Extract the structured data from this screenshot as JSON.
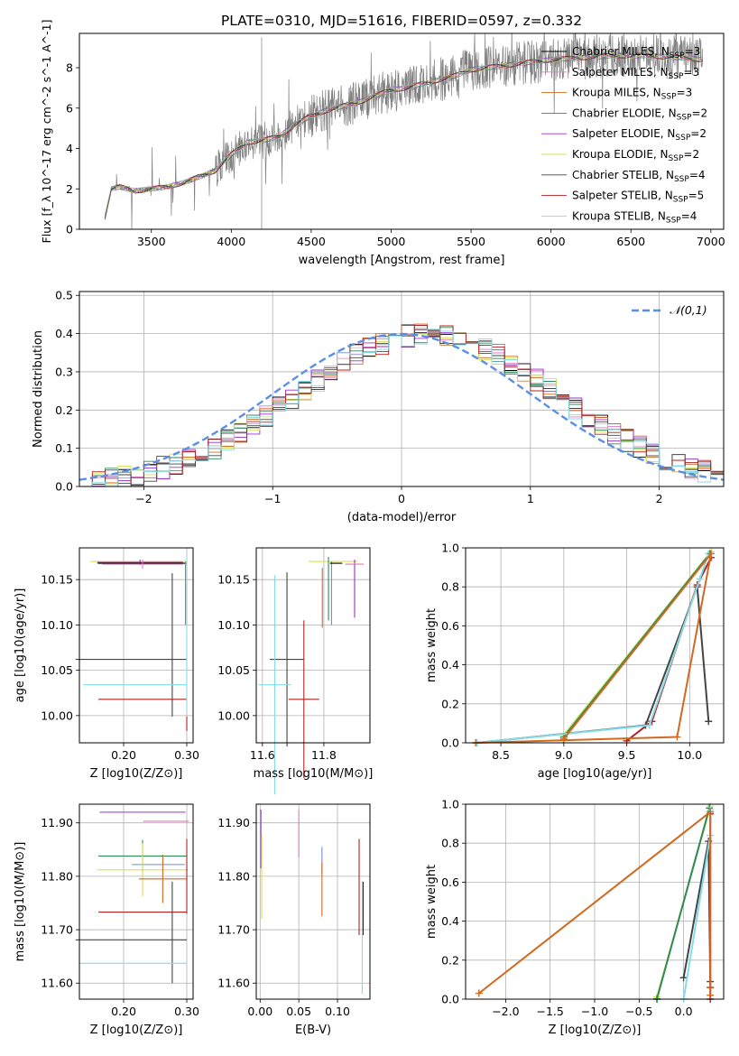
{
  "title": "PLATE=0310, MJD=51616, FIBERID=0597, z=0.332",
  "models": [
    {
      "label": "Chabrier MILES",
      "n_ssp": "3",
      "color": "#000000"
    },
    {
      "label": "Salpeter MILES",
      "n_ssp": "3",
      "color": "#e377c2"
    },
    {
      "label": "Kroupa MILES",
      "n_ssp": "3",
      "color": "#d2691e"
    },
    {
      "label": "Chabrier ELODIE",
      "n_ssp": "2",
      "color": "#2e8b57"
    },
    {
      "label": "Salpeter ELODIE",
      "n_ssp": "2",
      "color": "#9932cc"
    },
    {
      "label": "Kroupa ELODIE",
      "n_ssp": "2",
      "color": "#d4e157"
    },
    {
      "label": "Chabrier STELIB",
      "n_ssp": "4",
      "color": "#444444"
    },
    {
      "label": "Salpeter STELIB",
      "n_ssp": "5",
      "color": "#b22222"
    },
    {
      "label": "Kroupa STELIB",
      "n_ssp": "4",
      "color": "#80deea"
    }
  ],
  "chart_data": [
    {
      "id": "spectrum",
      "type": "line",
      "xlabel": "wavelength [Angstrom, rest frame]",
      "ylabel": "Flux [f_λ 10^-17 erg cm^-2 s^-1 A^-1]",
      "xlim": [
        3050,
        7080
      ],
      "ylim": [
        0,
        9.7
      ],
      "xticks": [
        3500,
        4000,
        4500,
        5000,
        5500,
        6000,
        6500,
        7000
      ],
      "yticks": [
        0,
        2,
        4,
        6,
        8
      ],
      "data_color": "#808080",
      "data_range": [
        3210,
        6950
      ],
      "continuum": {
        "x": [
          3210,
          3250,
          3300,
          3400,
          3500,
          3600,
          3700,
          3800,
          3900,
          4000,
          4100,
          4200,
          4300,
          4400,
          4500,
          4600,
          4700,
          4800,
          4900,
          5000,
          5100,
          5200,
          5300,
          5400,
          5500,
          5600,
          5700,
          5800,
          5900,
          6000,
          6200,
          6400,
          6600,
          6800,
          6950
        ],
        "y": [
          0.6,
          2.0,
          2.1,
          1.9,
          2.0,
          2.1,
          2.3,
          2.6,
          2.9,
          3.7,
          4.3,
          4.4,
          4.6,
          5.2,
          5.6,
          5.9,
          6.1,
          6.3,
          6.6,
          6.9,
          7.0,
          7.2,
          7.4,
          7.6,
          7.9,
          8.0,
          8.1,
          8.2,
          8.3,
          8.4,
          8.5,
          8.6,
          8.6,
          8.5,
          8.4
        ]
      }
    },
    {
      "id": "residuals",
      "type": "step-histogram",
      "xlabel": "(data-model)/error",
      "ylabel": "Normed distribution",
      "xlim": [
        -2.5,
        2.5
      ],
      "ylim": [
        0,
        0.51
      ],
      "xticks": [
        -2,
        -1,
        0,
        1,
        2
      ],
      "yticks": [
        0.0,
        0.1,
        0.2,
        0.3,
        0.4,
        0.5
      ],
      "bins": [
        -2.5,
        2.5,
        50
      ],
      "reference": {
        "name": "𝒩(0,1)",
        "mu": 0,
        "sigma": 1,
        "color": "#5b8ee6"
      },
      "grid": true,
      "legend": "top-right"
    },
    {
      "id": "age_vs_Z",
      "type": "scatter-errorbar",
      "xlabel": "Z [log10(Z/Z⊙)]",
      "ylabel": "age [log10(age/yr)]",
      "xlim": [
        0.13,
        0.31
      ],
      "ylim": [
        9.97,
        10.185
      ],
      "xticks": [
        0.2,
        0.3
      ],
      "yticks": [
        10.0,
        10.05,
        10.1,
        10.15
      ],
      "grid": true,
      "points": [
        {
          "model": 5,
          "x": 0.223,
          "y": 10.17,
          "xerr": 0.076,
          "yerr": 0
        },
        {
          "model": 4,
          "x": 0.226,
          "y": 10.169,
          "xerr": 0.068,
          "yerr": 0.003
        },
        {
          "model": 0,
          "x": 0.229,
          "y": 10.168,
          "xerr": 0.07,
          "yerr": 0
        },
        {
          "model": 1,
          "x": 0.23,
          "y": 10.167,
          "xerr": 0.064,
          "yerr": 0.005
        },
        {
          "model": 2,
          "x": 0.298,
          "y": 10.135,
          "xerr": 0,
          "yerr": 0.035
        },
        {
          "model": 6,
          "x": 0.277,
          "y": 10.078,
          "xerr": 0,
          "yerr": 0.079
        },
        {
          "model": 6,
          "x": 0.212,
          "y": 10.062,
          "xerr": 0.088,
          "yerr": 0
        },
        {
          "model": 8,
          "x": 0.218,
          "y": 10.034,
          "xerr": 0.082,
          "yerr": 0
        },
        {
          "model": 7,
          "x": 0.23,
          "y": 10.018,
          "xerr": 0.07,
          "yerr": 0
        },
        {
          "model": 7,
          "x": 0.3,
          "y": 9.991,
          "xerr": 0,
          "yerr": 0.008
        },
        {
          "model": 8,
          "x": 0.3,
          "y": 10.09,
          "xerr": 0,
          "yerr": 0.085
        }
      ]
    },
    {
      "id": "age_vs_mass",
      "type": "scatter-errorbar",
      "xlabel": "mass [log10(M/M⊙)]",
      "ylabel": "",
      "xlim": [
        11.58,
        11.95
      ],
      "ylim": [
        9.97,
        10.185
      ],
      "xticks": [
        11.6,
        11.8
      ],
      "yticks": [
        10.0,
        10.05,
        10.1,
        10.15
      ],
      "grid": true,
      "points": [
        {
          "model": 6,
          "x": 11.68,
          "y": 10.062,
          "xerr": 0.056,
          "yerr": 0.096
        },
        {
          "model": 8,
          "x": 11.64,
          "y": 10.034,
          "xerr": 0.053,
          "yerr": 0.121
        },
        {
          "model": 7,
          "x": 11.735,
          "y": 10.018,
          "xerr": 0.05,
          "yerr": 0.087
        },
        {
          "model": 5,
          "x": 11.83,
          "y": 10.17,
          "xerr": 0.08,
          "yerr": 0
        },
        {
          "model": 2,
          "x": 11.795,
          "y": 10.13,
          "xerr": 0,
          "yerr": 0.033
        },
        {
          "model": 3,
          "x": 11.815,
          "y": 10.14,
          "xerr": 0,
          "yerr": 0.035
        },
        {
          "model": 9,
          "x": 11.825,
          "y": 10.135,
          "xerr": 0,
          "yerr": 0.035
        },
        {
          "model": 4,
          "x": 11.9,
          "y": 10.14,
          "xerr": 0,
          "yerr": 0.032
        },
        {
          "model": 1,
          "x": 11.9,
          "y": 10.167,
          "xerr": 0.03,
          "yerr": 0
        },
        {
          "model": 0,
          "x": 11.84,
          "y": 10.168,
          "xerr": 0.02,
          "yerr": 0
        }
      ]
    },
    {
      "id": "massweight_vs_age",
      "type": "line",
      "xlabel": "age [log10(age/yr)]",
      "ylabel": "mass weight",
      "xlim": [
        8.22,
        10.27
      ],
      "ylim": [
        0,
        1.0
      ],
      "xticks": [
        8.5,
        9.0,
        9.5,
        10.0
      ],
      "yticks": [
        0.0,
        0.2,
        0.4,
        0.6,
        0.8,
        1.0
      ],
      "grid": true,
      "series": [
        {
          "model": 5,
          "x": [
            9.0,
            10.17,
            9.0
          ],
          "y": [
            0.04,
            0.98,
            0.04
          ]
        },
        {
          "model": 3,
          "x": [
            9.0,
            10.16,
            9.0
          ],
          "y": [
            0.03,
            0.97,
            0.03
          ]
        },
        {
          "model": 6,
          "x": [
            8.31,
            9.65,
            10.06,
            10.15
          ],
          "y": [
            0.0,
            0.09,
            0.8,
            0.11
          ]
        },
        {
          "model": 7,
          "x": [
            9.5,
            9.7,
            10.06,
            10.17
          ],
          "y": [
            0.01,
            0.11,
            0.81,
            0.95
          ]
        },
        {
          "model": 8,
          "x": [
            8.31,
            9.68,
            10.08,
            10.15
          ],
          "y": [
            0.0,
            0.09,
            0.84,
            0.97
          ]
        },
        {
          "model": 2,
          "x": [
            8.3,
            9.9,
            10.17,
            9.0
          ],
          "y": [
            0.0,
            0.03,
            0.97,
            0.02
          ]
        }
      ]
    },
    {
      "id": "mass_vs_Z",
      "type": "scatter-errorbar",
      "xlabel": "Z [log10(Z/Z⊙)]",
      "ylabel": "mass [log10(M/M⊙)]",
      "xlim": [
        0.13,
        0.31
      ],
      "ylim": [
        11.57,
        11.935
      ],
      "xticks": [
        0.2,
        0.3
      ],
      "yticks": [
        11.6,
        11.7,
        11.8,
        11.9
      ],
      "grid": true,
      "points": [
        {
          "model": 4,
          "x": 0.23,
          "y": 11.92,
          "xerr": 0.068,
          "yerr": 0
        },
        {
          "model": 1,
          "x": 0.267,
          "y": 11.903,
          "xerr": 0.036,
          "yerr": 0
        },
        {
          "model": 3,
          "x": 0.23,
          "y": 11.838,
          "xerr": 0.07,
          "yerr": 0.03
        },
        {
          "model": 9,
          "x": 0.255,
          "y": 11.822,
          "xerr": 0.042,
          "yerr": 0
        },
        {
          "model": 5,
          "x": 0.23,
          "y": 11.812,
          "xerr": 0.072,
          "yerr": 0.05
        },
        {
          "model": 2,
          "x": 0.262,
          "y": 11.795,
          "xerr": 0.038,
          "yerr": 0.045
        },
        {
          "model": 7,
          "x": 0.23,
          "y": 11.733,
          "xerr": 0.07,
          "yerr": 0
        },
        {
          "model": 6,
          "x": 0.212,
          "y": 11.681,
          "xerr": 0.088,
          "yerr": 0
        },
        {
          "model": 6,
          "x": 0.277,
          "y": 11.695,
          "xerr": 0,
          "yerr": 0.095
        },
        {
          "model": 8,
          "x": 0.215,
          "y": 11.637,
          "xerr": 0.085,
          "yerr": 0
        },
        {
          "model": 7,
          "x": 0.3,
          "y": 11.8,
          "xerr": 0,
          "yerr": 0.07
        }
      ]
    },
    {
      "id": "mass_vs_EBV",
      "type": "scatter-errorbar",
      "xlabel": "E(B-V)",
      "ylabel": "",
      "xlim": [
        -0.005,
        0.142
      ],
      "ylim": [
        11.57,
        11.935
      ],
      "xticks": [
        0.0,
        0.05,
        0.1
      ],
      "yticks": [
        11.6,
        11.7,
        11.8,
        11.9
      ],
      "grid": true,
      "points": [
        {
          "model": 4,
          "x": 0.001,
          "y": 11.87,
          "xerr": 0,
          "yerr": 0.055
        },
        {
          "model": 5,
          "x": 0.002,
          "y": 11.8,
          "xerr": 0,
          "yerr": 0.08
        },
        {
          "model": 1,
          "x": 0.05,
          "y": 11.88,
          "xerr": 0,
          "yerr": 0.045
        },
        {
          "model": 9,
          "x": 0.08,
          "y": 11.83,
          "xerr": 0,
          "yerr": 0.025
        },
        {
          "model": 2,
          "x": 0.08,
          "y": 11.775,
          "xerr": 0,
          "yerr": 0.05
        },
        {
          "model": 7,
          "x": 0.128,
          "y": 11.78,
          "xerr": 0,
          "yerr": 0.09
        },
        {
          "model": 0,
          "x": 0.133,
          "y": 11.74,
          "xerr": 0,
          "yerr": 0.05
        },
        {
          "model": 8,
          "x": 0.132,
          "y": 11.64,
          "xerr": 0,
          "yerr": 0.06
        }
      ]
    },
    {
      "id": "massweight_vs_Z",
      "type": "line",
      "xlabel": "Z [log10(Z/Z⊙)]",
      "ylabel": "mass weight",
      "xlim": [
        -2.45,
        0.45
      ],
      "ylim": [
        0,
        1.0
      ],
      "xticks": [
        -2.0,
        -1.5,
        -1.0,
        -0.5,
        0.0
      ],
      "yticks": [
        0.0,
        0.2,
        0.4,
        0.6,
        0.8,
        1.0
      ],
      "grid": true,
      "series": [
        {
          "model": 5,
          "x": [
            -0.3,
            0.3,
            -0.3
          ],
          "y": [
            0.01,
            0.99,
            0.01
          ]
        },
        {
          "model": 3,
          "x": [
            -0.3,
            0.29,
            -0.3
          ],
          "y": [
            0.0,
            0.98,
            0.0
          ]
        },
        {
          "model": 6,
          "x": [
            0.0,
            0.28,
            0.3
          ],
          "y": [
            0.11,
            0.81,
            0.09
          ]
        },
        {
          "model": 7,
          "x": [
            0.3,
            0.3,
            0.3
          ],
          "y": [
            0.0,
            0.95,
            0.06
          ]
        },
        {
          "model": 8,
          "x": [
            0.0,
            0.3,
            0.3
          ],
          "y": [
            0.0,
            0.84,
            0.97
          ]
        },
        {
          "model": 2,
          "x": [
            -2.3,
            0.3,
            0.3
          ],
          "y": [
            0.03,
            0.96,
            0.02
          ]
        }
      ]
    }
  ]
}
